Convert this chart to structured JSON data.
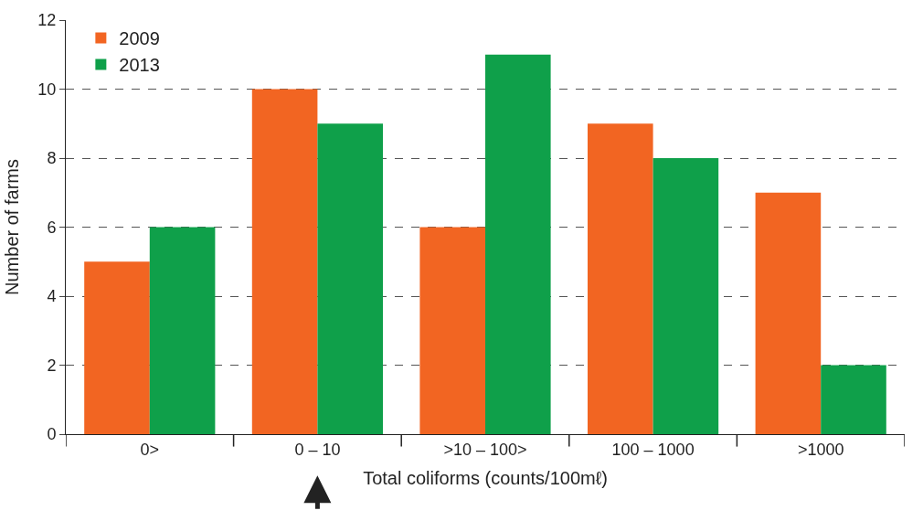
{
  "chart_data": {
    "type": "bar",
    "xlabel": "Total coliforms (counts/100mℓ)",
    "ylabel": "Number of farms",
    "categories": [
      "0>",
      "0 – 10",
      ">10 – 100>",
      "100 – 1000",
      ">1000"
    ],
    "series": [
      {
        "name": "2009",
        "color": "#f26522",
        "values": [
          5,
          10,
          6,
          9,
          7
        ]
      },
      {
        "name": "2013",
        "color": "#0fa04a",
        "values": [
          6,
          9,
          11,
          8,
          2
        ]
      }
    ],
    "ylim": [
      0,
      12
    ],
    "yticks": [
      0,
      2,
      4,
      6,
      8,
      10,
      12
    ],
    "grid": "y",
    "legend": "top left"
  }
}
